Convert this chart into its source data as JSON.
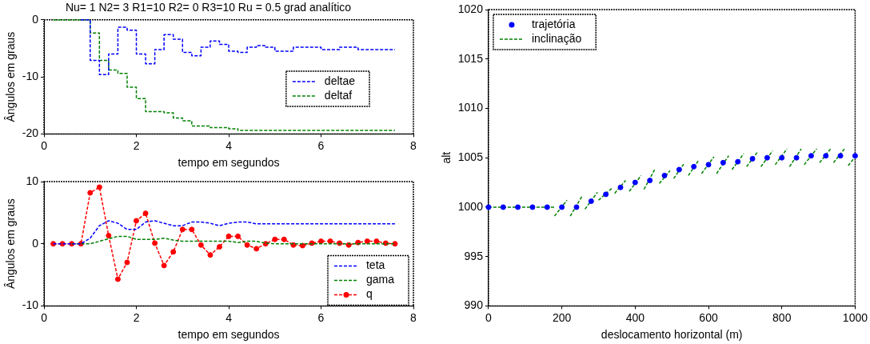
{
  "chart_data": [
    {
      "type": "step",
      "title": "Nu= 1 N2= 3 R1=10 R2= 0 R3=10 Ru = 0.5 grad analítico",
      "xlabel": "tempo em segundos",
      "ylabel": "Ângulos em graus",
      "xlim": [
        0,
        8
      ],
      "ylim": [
        -20,
        0
      ],
      "xticks": [
        0,
        2,
        4,
        6,
        8
      ],
      "yticks": [
        -20,
        -10,
        0
      ],
      "legend": "right",
      "line_style": "dashed",
      "marker": "none",
      "x": [
        0.2,
        0.4,
        0.6,
        0.8,
        1.0,
        1.2,
        1.4,
        1.6,
        1.8,
        2.0,
        2.2,
        2.4,
        2.6,
        2.8,
        3.0,
        3.2,
        3.4,
        3.6,
        3.8,
        4.0,
        4.2,
        4.4,
        4.6,
        4.8,
        5.0,
        5.2,
        5.4,
        5.6,
        5.8,
        6.0,
        6.2,
        6.4,
        6.6,
        6.8,
        7.0,
        7.2,
        7.4,
        7.6
      ],
      "series": [
        {
          "name": "deltae",
          "color": "#0000ff",
          "values": [
            null,
            null,
            null,
            0,
            -7.1,
            -9.6,
            -6,
            -1.3,
            -1.8,
            -6,
            -7.7,
            -5.2,
            -2.6,
            -3.4,
            -5.7,
            -6.3,
            -4.8,
            -3.7,
            -4.3,
            -5.5,
            -5.7,
            -4.8,
            -4.5,
            -4.8,
            -5.5,
            -5.5,
            -4.8,
            -4.8,
            -4.8,
            -5.2,
            -5.2,
            -4.8,
            -4.8,
            -5.2,
            -5.2,
            -5.2,
            -5.2,
            -5.2
          ]
        },
        {
          "name": "deltaf",
          "color": "#008000",
          "values": [
            0,
            0,
            0,
            0,
            -2.3,
            -7.1,
            -8.8,
            -9.4,
            -11.8,
            -13.8,
            -16.1,
            -16.1,
            -16.3,
            -17.2,
            -17.7,
            -18.6,
            -18.6,
            -18.9,
            -18.9,
            -19.1,
            -19.4,
            -19.4,
            -19.4,
            -19.4,
            -19.4,
            -19.4,
            -19.4,
            -19.4,
            -19.4,
            -19.4,
            -19.4,
            -19.4,
            -19.4,
            -19.4,
            -19.4,
            -19.4,
            -19.4,
            -19.4
          ]
        }
      ]
    },
    {
      "type": "line",
      "xlabel": "tempo em segundos",
      "ylabel": "Ângulos em graus",
      "xlim": [
        0,
        8
      ],
      "ylim": [
        -10,
        10
      ],
      "xticks": [
        0,
        2,
        4,
        6,
        8
      ],
      "yticks": [
        -10,
        0,
        10
      ],
      "legend": "bottom right",
      "line_style": "dashed",
      "x": [
        0.2,
        0.4,
        0.6,
        0.8,
        1.0,
        1.2,
        1.4,
        1.6,
        1.8,
        2.0,
        2.2,
        2.4,
        2.6,
        2.8,
        3.0,
        3.2,
        3.4,
        3.6,
        3.8,
        4.0,
        4.2,
        4.4,
        4.6,
        4.8,
        5.0,
        5.2,
        5.4,
        5.6,
        5.8,
        6.0,
        6.2,
        6.4,
        6.6,
        6.8,
        7.0,
        7.2,
        7.4,
        7.6
      ],
      "series": [
        {
          "name": "teta",
          "color": "#0000ff",
          "marker": "none",
          "values": [
            0,
            0,
            0,
            0,
            0.9,
            2.9,
            3.7,
            3.3,
            2.3,
            2.3,
            3.5,
            3.7,
            3.3,
            2.9,
            2.9,
            3.5,
            3.5,
            3.3,
            2.9,
            3.3,
            3.5,
            3.5,
            3.2,
            3.2,
            3.2,
            3.2,
            3.2,
            3.2,
            3.2,
            3.2,
            3.2,
            3.2,
            3.2,
            3.2,
            3.2,
            3.2,
            3.2,
            3.2
          ]
        },
        {
          "name": "gama",
          "color": "#008000",
          "marker": "none",
          "values": [
            null,
            null,
            0,
            0,
            0,
            0.4,
            0.8,
            1.2,
            1.2,
            0.7,
            0.7,
            0.7,
            0.9,
            0.6,
            0.4,
            0.4,
            0.4,
            0.4,
            0.4,
            0.4,
            0.2,
            0.4,
            0.4,
            0.1,
            0,
            0,
            0,
            0,
            0,
            0,
            0,
            0,
            0,
            0,
            0,
            0,
            0,
            0
          ]
        },
        {
          "name": "q",
          "color": "#ff0000",
          "marker": "circle",
          "values": [
            0,
            0,
            0,
            0,
            8.2,
            9.1,
            1.3,
            -5.7,
            -3,
            3.7,
            4.9,
            0.1,
            -3.5,
            -1.3,
            2.3,
            2.3,
            -0.2,
            -1.8,
            -0.5,
            1.2,
            1.2,
            -0.2,
            -0.8,
            0,
            0.7,
            0.7,
            -0.2,
            -0.3,
            0.1,
            0.4,
            0.4,
            0.1,
            -0.2,
            0.2,
            0.4,
            0.4,
            0.1,
            0
          ]
        }
      ]
    },
    {
      "type": "scatter",
      "xlabel": "deslocamento horizontal (m)",
      "ylabel": "alt",
      "xlim": [
        0,
        1000
      ],
      "ylim": [
        990,
        1020
      ],
      "xticks": [
        0,
        200,
        400,
        600,
        800,
        1000
      ],
      "yticks": [
        990,
        995,
        1000,
        1005,
        1010,
        1015,
        1020
      ],
      "legend": "top left",
      "series": [
        {
          "name": "trajetória",
          "color": "#0000ff",
          "marker": "circle",
          "x": [
            0,
            40,
            80,
            120,
            160,
            200,
            240,
            280,
            320,
            360,
            400,
            440,
            480,
            520,
            560,
            600,
            640,
            680,
            720,
            760,
            800,
            840,
            880,
            920,
            960,
            1000
          ],
          "values": [
            1000,
            1000,
            1000,
            1000,
            1000,
            1000,
            1000,
            1000.6,
            1001.3,
            1002,
            1002.5,
            1002.7,
            1003.2,
            1003.8,
            1004.1,
            1004.3,
            1004.5,
            1004.6,
            1004.9,
            1005,
            1005,
            1005,
            1005.2,
            1005.2,
            1005.2,
            1005.2
          ]
        },
        {
          "name": "inclinação",
          "type": "line",
          "color": "#008000",
          "marker": "none",
          "line_style": "dashed",
          "x": [
            0,
            180,
            null,
            180,
            214,
            null,
            223,
            255,
            null,
            263,
            297,
            null,
            300,
            336,
            null,
            344,
            374,
            null,
            384,
            416,
            null,
            424,
            453,
            null,
            466,
            495,
            null,
            505,
            535,
            null,
            545,
            574,
            null,
            581,
            615,
            null,
            622,
            655,
            null,
            664,
            696,
            null,
            704,
            734,
            null,
            743,
            775,
            null,
            782,
            814,
            null,
            821,
            853,
            null,
            861,
            895,
            null,
            903,
            935,
            null,
            941,
            973,
            null,
            981,
            1000
          ],
          "values": [
            1000,
            1000,
            null,
            999.1,
            1000.7,
            null,
            999.1,
            1001.1,
            null,
            999.8,
            1001.5,
            null,
            1000.7,
            1001.9,
            null,
            1001.4,
            1002.7,
            null,
            1001.6,
            1003.2,
            null,
            1001.8,
            1003.8,
            null,
            1002.4,
            1003.7,
            null,
            1002.9,
            1004.5,
            null,
            1003.2,
            1004.8,
            null,
            1003.4,
            1005.1,
            null,
            1003.4,
            1005.2,
            null,
            1003.8,
            1005.4,
            null,
            1004.1,
            1005.6,
            null,
            1004.1,
            1005.7,
            null,
            1004.3,
            1005.9,
            null,
            1004.1,
            1005.9,
            null,
            1004.3,
            1005.9,
            null,
            1004.5,
            1006,
            null,
            1004.5,
            1006,
            null,
            1004.2,
            1005.1
          ]
        }
      ]
    }
  ]
}
